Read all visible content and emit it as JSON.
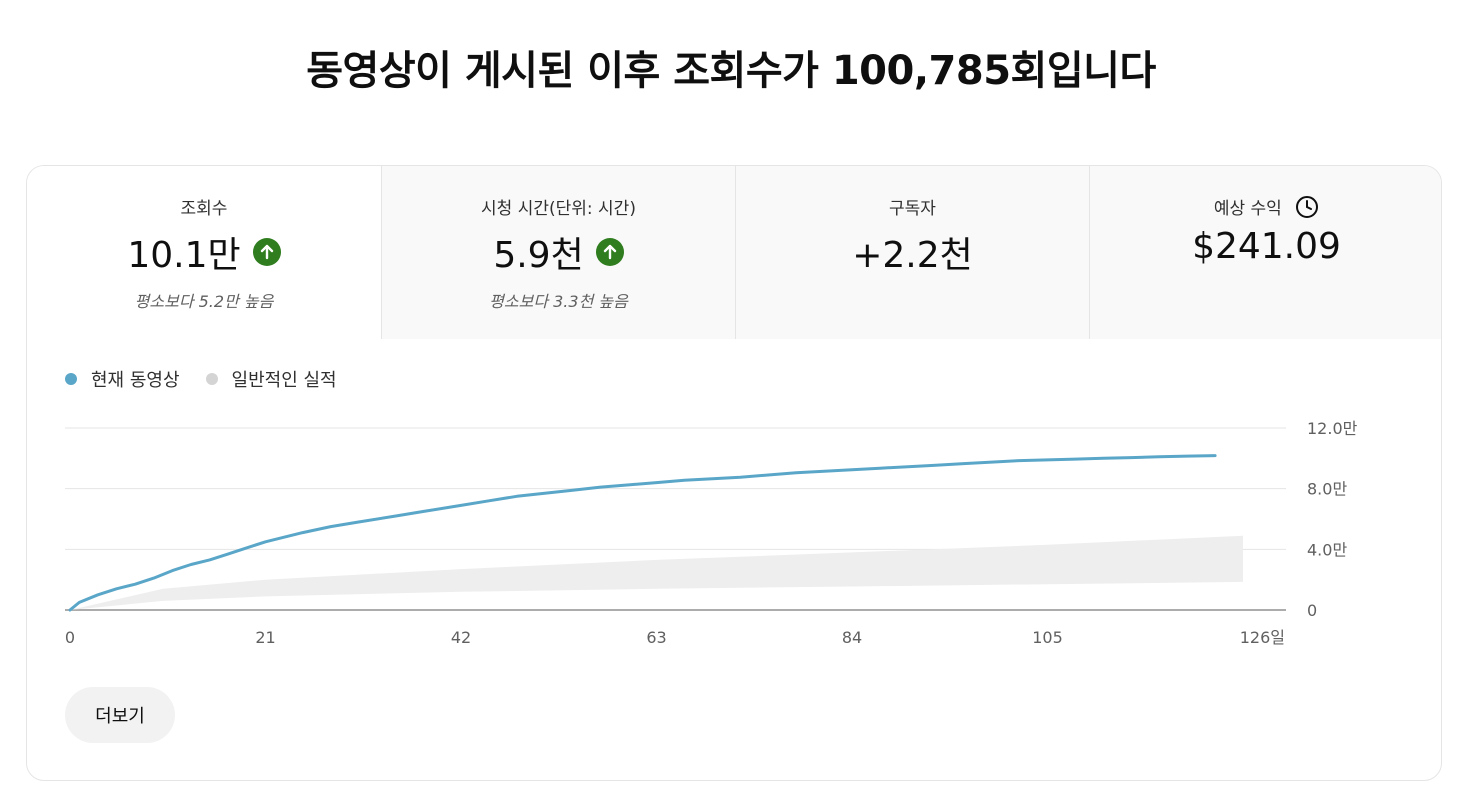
{
  "title": "동영상이 게시된 이후 조회수가 100,785회입니다",
  "metrics": [
    {
      "label": "조회수",
      "value": "10.1만",
      "trend": "up",
      "sub": "평소보다 5.2만 높음"
    },
    {
      "label": "시청 시간(단위: 시간)",
      "value": "5.9천",
      "trend": "up",
      "sub": "평소보다 3.3천 높음"
    },
    {
      "label": "구독자",
      "value": "+2.2천",
      "trend": "",
      "sub": ""
    },
    {
      "label": "예상 수익",
      "value": "$241.09",
      "trend": "",
      "sub": "",
      "icon": "clock-icon"
    }
  ],
  "colors": {
    "current": "#5aa6c8",
    "typical": "#d4d4d4",
    "trend_up": "#2f7d1e"
  },
  "more_label": "더보기",
  "chart_data": {
    "type": "line",
    "title": "",
    "x_unit": "일",
    "x_ticks": [
      0,
      21,
      42,
      63,
      84,
      105,
      126
    ],
    "x_tick_labels": [
      "0",
      "21",
      "42",
      "63",
      "84",
      "105",
      "126일"
    ],
    "y_ticks": [
      0,
      40000,
      80000,
      120000
    ],
    "y_tick_labels": [
      "0",
      "4.0만",
      "8.0만",
      "12.0만"
    ],
    "xlim": [
      0,
      126
    ],
    "ylim": [
      0,
      120000
    ],
    "grid": true,
    "legend_position": "top-left",
    "series": [
      {
        "name": "현재 동영상",
        "color": "#5aa6c8",
        "x": [
          0,
          1,
          3,
          5,
          7,
          9,
          11,
          13,
          15,
          17,
          19,
          21,
          23,
          25,
          28,
          31,
          35,
          38,
          42,
          45,
          48,
          51,
          54,
          57,
          60,
          63,
          66,
          69,
          72,
          75,
          78,
          81,
          84,
          87,
          90,
          93,
          96,
          99,
          102,
          105,
          108,
          111,
          114,
          117,
          120,
          123
        ],
        "y": [
          0,
          5000,
          10000,
          14000,
          17000,
          21000,
          26000,
          30000,
          33000,
          37000,
          41000,
          45000,
          48000,
          51000,
          55000,
          58000,
          62000,
          65000,
          69000,
          72000,
          75000,
          77000,
          79000,
          81000,
          82500,
          84000,
          85500,
          86500,
          87500,
          89000,
          90500,
          91500,
          92500,
          93500,
          94500,
          95500,
          96500,
          97500,
          98500,
          99000,
          99500,
          100000,
          100500,
          101000,
          101500,
          101800
        ]
      }
    ],
    "band": {
      "name": "일반적인 실적",
      "color": "#d4d4d4",
      "x": [
        0,
        10,
        21,
        42,
        63,
        84,
        105,
        126
      ],
      "upper": [
        0,
        14000,
        20000,
        27000,
        33000,
        38000,
        43000,
        49000
      ],
      "lower": [
        0,
        6000,
        9000,
        12000,
        14000,
        15500,
        17000,
        18500
      ]
    }
  }
}
